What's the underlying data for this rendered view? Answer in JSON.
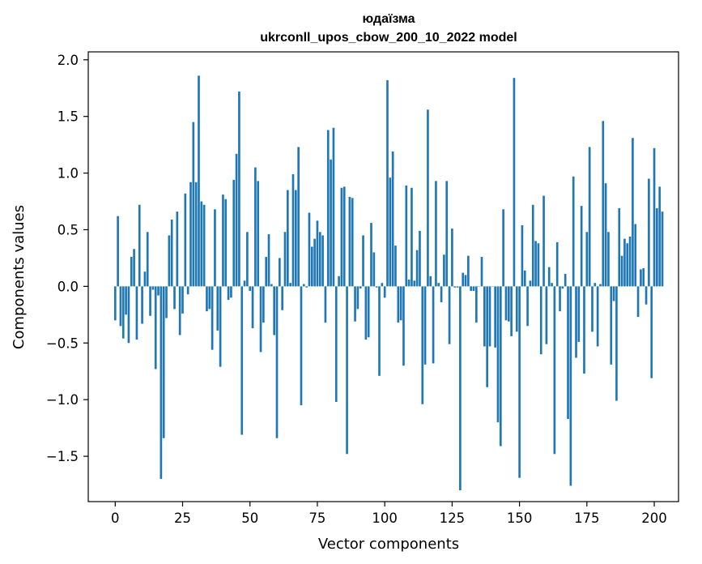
{
  "chart_data": {
    "type": "bar",
    "title": "юдаїзма",
    "subtitle": "ukrconll_upos_cbow_200_10_2022 model",
    "xlabel": "Vector components",
    "ylabel": "Components values",
    "xlim": [
      -10,
      209
    ],
    "ylim": [
      -1.9,
      2.07
    ],
    "x_ticks": [
      0,
      25,
      50,
      75,
      100,
      125,
      150,
      175,
      200
    ],
    "y_ticks": [
      -1.5,
      -1.0,
      -0.5,
      0.0,
      0.5,
      1.0,
      1.5,
      2.0
    ],
    "x_tick_labels": [
      "0",
      "25",
      "50",
      "75",
      "100",
      "125",
      "150",
      "175",
      "200"
    ],
    "y_tick_labels": [
      "−1.5",
      "−1.0",
      "−0.5",
      "0.0",
      "0.5",
      "1.0",
      "1.5",
      "2.0"
    ],
    "grid": false,
    "bar_color": "#1f77b4",
    "values": [
      -0.3,
      0.62,
      -0.35,
      -0.46,
      -0.25,
      -0.5,
      0.26,
      0.33,
      -0.47,
      0.72,
      -0.33,
      0.13,
      0.48,
      -0.26,
      -0.03,
      -0.73,
      -0.08,
      -1.7,
      -1.34,
      -0.28,
      0.45,
      0.59,
      -0.2,
      0.66,
      -0.43,
      -0.24,
      0.82,
      -0.07,
      0.92,
      1.45,
      0.92,
      1.86,
      0.75,
      0.72,
      -0.22,
      -0.2,
      -0.56,
      0.68,
      -0.39,
      -0.71,
      0.81,
      0.77,
      -0.12,
      -0.1,
      0.94,
      1.17,
      1.72,
      -1.31,
      0.05,
      0.48,
      -0.04,
      -0.37,
      1.05,
      0.93,
      -0.58,
      -0.32,
      0.26,
      0.46,
      0.02,
      -0.43,
      -1.34,
      0.25,
      -0.21,
      0.48,
      0.85,
      0.03,
      0.99,
      0.85,
      1.23,
      -1.05,
      0.02,
      -0.01,
      0.65,
      0.35,
      0.42,
      0.58,
      0.48,
      0.45,
      -0.32,
      1.38,
      1.12,
      1.4,
      -1.02,
      0.09,
      0.87,
      0.88,
      -1.48,
      0.79,
      0.78,
      -0.31,
      -0.2,
      -0.02,
      0.45,
      -0.47,
      -0.45,
      0.56,
      0.3,
      -0.01,
      -0.79,
      0.03,
      -0.1,
      1.82,
      0.96,
      1.19,
      0.36,
      -0.32,
      -0.3,
      -0.7,
      0.89,
      0.06,
      0.87,
      0.05,
      0.32,
      0.49,
      -1.04,
      -0.69,
      1.56,
      0.09,
      -0.68,
      0.93,
      0.03,
      -0.14,
      0.28,
      0.93,
      -0.51,
      0.51,
      -0.01,
      -0.01,
      -1.8,
      0.12,
      0.1,
      0.27,
      -0.04,
      -0.04,
      -0.32,
      0.0,
      0.26,
      -0.53,
      -0.89,
      -0.53,
      0.0,
      -0.54,
      -1.2,
      -1.41,
      0.68,
      -0.3,
      -0.31,
      -0.44,
      1.84,
      -0.4,
      -1.69,
      0.54,
      0.14,
      -0.35,
      0.05,
      0.72,
      0.4,
      0.38,
      -0.6,
      0.8,
      -0.51,
      0.17,
      0.03,
      -1.48,
      0.39,
      -0.22,
      -0.02,
      0.11,
      -1.17,
      -1.76,
      0.97,
      -0.63,
      -0.49,
      0.71,
      -0.77,
      0.48,
      1.23,
      -0.4,
      0.03,
      -0.53,
      0.02,
      1.46,
      0.91,
      0.48,
      -0.69,
      -0.13,
      -1.01,
      0.69,
      0.27,
      0.42,
      0.38,
      0.44,
      1.31,
      0.55,
      -0.27,
      0.15,
      0.16,
      -0.16,
      0.95,
      -0.81,
      1.22,
      0.69,
      0.88,
      0.66
    ]
  }
}
